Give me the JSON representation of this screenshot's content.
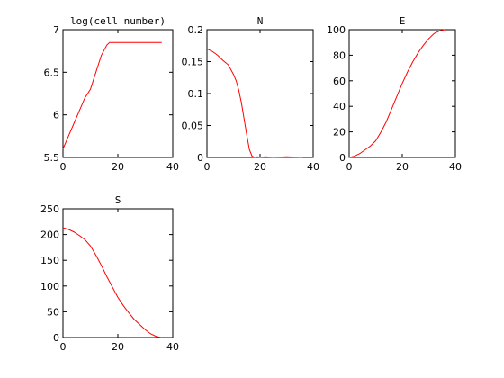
{
  "chart_data": [
    {
      "type": "line",
      "title": "log(cell number)",
      "xlim": [
        0,
        40
      ],
      "ylim": [
        5.5,
        7
      ],
      "xticks": [
        0,
        20,
        40
      ],
      "yticks": [
        5.5,
        6,
        6.5,
        7
      ],
      "xtick_labels": [
        "0",
        "20",
        "40"
      ],
      "ytick_labels": [
        "5.5",
        "6",
        "6.5",
        "7"
      ],
      "grid": false,
      "series": [
        {
          "color": "#ff0000",
          "x": [
            0,
            2,
            4,
            6,
            8,
            10,
            12,
            14,
            16,
            17,
            18,
            20,
            25,
            30,
            36
          ],
          "y": [
            5.6,
            5.75,
            5.9,
            6.05,
            6.2,
            6.3,
            6.5,
            6.7,
            6.82,
            6.85,
            6.85,
            6.85,
            6.85,
            6.85,
            6.85
          ]
        }
      ]
    },
    {
      "type": "line",
      "title": "N",
      "xlim": [
        0,
        40
      ],
      "ylim": [
        0,
        0.2
      ],
      "xticks": [
        0,
        20,
        40
      ],
      "yticks": [
        0,
        0.05,
        0.1,
        0.15,
        0.2
      ],
      "xtick_labels": [
        "0",
        "20",
        "40"
      ],
      "ytick_labels": [
        "0",
        "0.05",
        "0.1",
        "0.15",
        "0.2"
      ],
      "grid": false,
      "series": [
        {
          "color": "#ff0000",
          "x": [
            0,
            2,
            4,
            6,
            8,
            10,
            11,
            12,
            13,
            14,
            15,
            16,
            17,
            18,
            19,
            20,
            22,
            25,
            30,
            36
          ],
          "y": [
            0.17,
            0.166,
            0.16,
            0.152,
            0.145,
            0.13,
            0.12,
            0.105,
            0.085,
            0.06,
            0.035,
            0.012,
            0.002,
            0.0,
            0.001,
            0.0,
            0.001,
            0.0,
            0.001,
            0.0
          ]
        }
      ]
    },
    {
      "type": "line",
      "title": "E",
      "xlim": [
        0,
        40
      ],
      "ylim": [
        0,
        100
      ],
      "xticks": [
        0,
        20,
        40
      ],
      "yticks": [
        0,
        20,
        40,
        60,
        80,
        100
      ],
      "xtick_labels": [
        "0",
        "20",
        "40"
      ],
      "ytick_labels": [
        "0",
        "20",
        "40",
        "60",
        "80",
        "100"
      ],
      "grid": false,
      "series": [
        {
          "color": "#ff0000",
          "x": [
            0,
            2,
            4,
            6,
            8,
            10,
            12,
            14,
            16,
            18,
            20,
            22,
            24,
            26,
            28,
            30,
            32,
            34,
            36
          ],
          "y": [
            0,
            1,
            3,
            6,
            9,
            13,
            20,
            28,
            38,
            48,
            58,
            67,
            75,
            82,
            88,
            93,
            97,
            99,
            100
          ]
        }
      ]
    },
    {
      "type": "line",
      "title": "S",
      "xlim": [
        0,
        40
      ],
      "ylim": [
        0,
        250
      ],
      "xticks": [
        0,
        20,
        40
      ],
      "yticks": [
        0,
        50,
        100,
        150,
        200,
        250
      ],
      "xtick_labels": [
        "0",
        "20",
        "40"
      ],
      "ytick_labels": [
        "0",
        "50",
        "100",
        "150",
        "200",
        "250"
      ],
      "grid": false,
      "series": [
        {
          "color": "#ff0000",
          "x": [
            0,
            2,
            4,
            6,
            8,
            10,
            12,
            14,
            16,
            18,
            20,
            22,
            24,
            26,
            28,
            30,
            32,
            34,
            36
          ],
          "y": [
            213,
            210,
            205,
            198,
            190,
            178,
            160,
            140,
            118,
            98,
            78,
            62,
            48,
            35,
            25,
            15,
            7,
            2,
            0
          ]
        }
      ]
    }
  ]
}
